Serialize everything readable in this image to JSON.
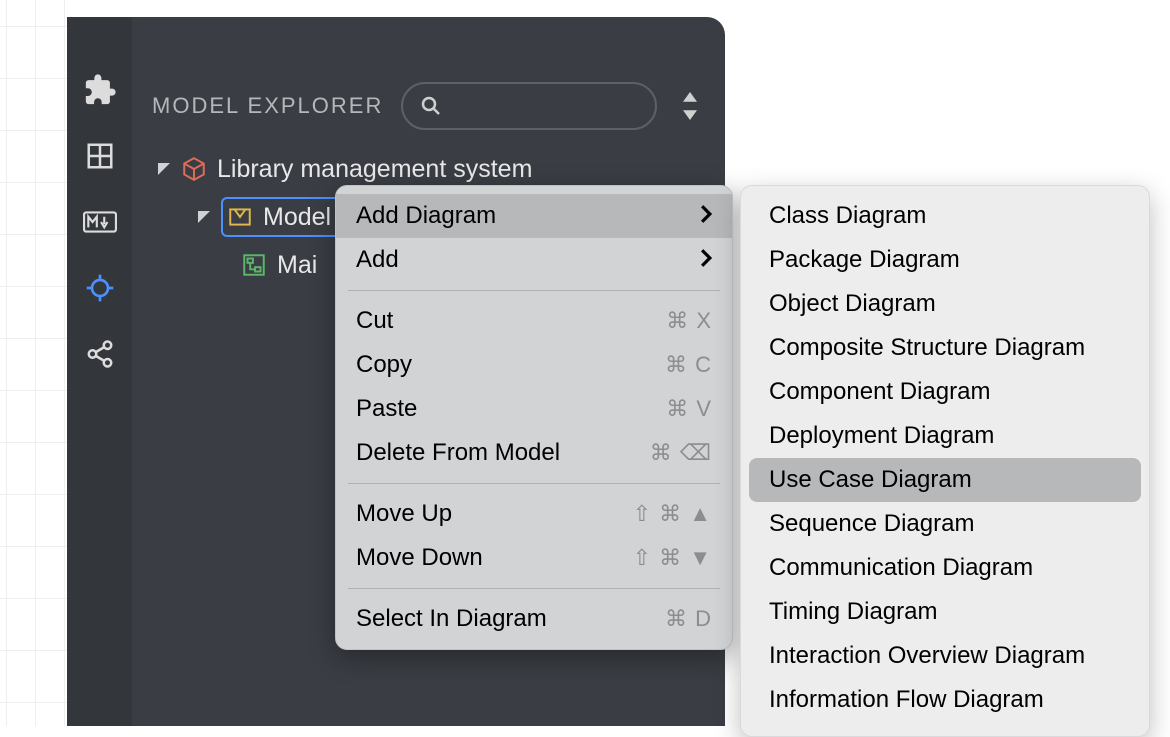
{
  "panel": {
    "title": "MODEL EXPLORER",
    "search_placeholder": "",
    "colors": {
      "panel_bg": "#3a3e44",
      "rail_bg": "#33363b",
      "text": "#e8e8e9",
      "title_text": "#b5b7ba",
      "accent": "#4a90ff",
      "root_icon": "#e06c5a",
      "model_icon": "#e0b74a",
      "child_icon": "#5bb56a"
    }
  },
  "tree": {
    "root": {
      "label": "Library management system"
    },
    "model": {
      "label": "Model"
    },
    "child": {
      "label": "Mai"
    }
  },
  "context_menu": {
    "bg": "#d2d3d4",
    "hover_bg": "#b7b8b9",
    "items": [
      {
        "id": "add-diagram",
        "label": "Add Diagram",
        "submenu": true,
        "hover": true
      },
      {
        "id": "add",
        "label": "Add",
        "submenu": true
      },
      {
        "sep": true
      },
      {
        "id": "cut",
        "label": "Cut",
        "shortcut": "⌘ X"
      },
      {
        "id": "copy",
        "label": "Copy",
        "shortcut": "⌘ C"
      },
      {
        "id": "paste",
        "label": "Paste",
        "shortcut": "⌘ V"
      },
      {
        "id": "delete",
        "label": "Delete From Model",
        "shortcut": "⌘ ⌫"
      },
      {
        "sep": true
      },
      {
        "id": "move-up",
        "label": "Move Up",
        "shortcut": "⇧ ⌘ ▲"
      },
      {
        "id": "move-down",
        "label": "Move Down",
        "shortcut": "⇧ ⌘ ▼"
      },
      {
        "sep": true
      },
      {
        "id": "select-in-diagram",
        "label": "Select In Diagram",
        "shortcut": "⌘ D"
      }
    ]
  },
  "submenu": {
    "bg": "#ededee",
    "hover_bg": "#b7b8b9",
    "items": [
      {
        "label": "Class Diagram"
      },
      {
        "label": "Package Diagram"
      },
      {
        "label": "Object Diagram"
      },
      {
        "label": "Composite Structure Diagram"
      },
      {
        "label": "Component Diagram"
      },
      {
        "label": "Deployment Diagram"
      },
      {
        "label": "Use Case Diagram",
        "hover": true
      },
      {
        "label": "Sequence Diagram"
      },
      {
        "label": "Communication Diagram"
      },
      {
        "label": "Timing Diagram"
      },
      {
        "label": "Interaction Overview Diagram"
      },
      {
        "label": "Information Flow Diagram"
      }
    ]
  }
}
